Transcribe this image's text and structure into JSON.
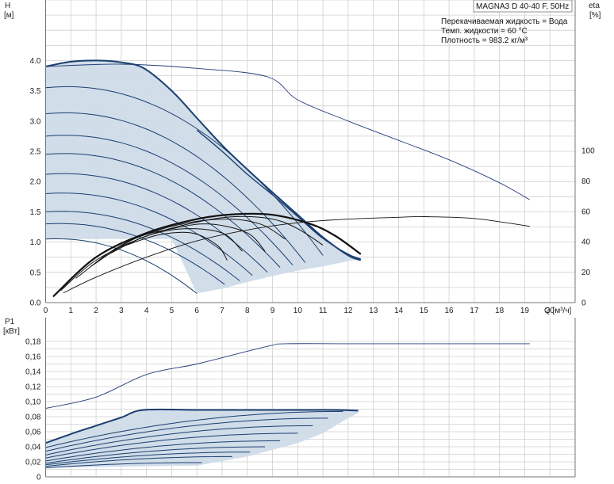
{
  "chart_data": [
    {
      "type": "line",
      "panel": "head",
      "title": "MAGNA3 D 40-40 F, 50Hz",
      "annotations": [
        "Перекачиваемая жидкость = Вода",
        "Темп. жидкости = 60 °C",
        "Плотность = 983.2 кг/м³"
      ],
      "ylabel": "H",
      "yunit": "[м]",
      "y2label": "eta",
      "y2unit": "[%]",
      "xlabel": "Q [м³/ч]",
      "xlim": [
        0,
        21
      ],
      "ylim": [
        0,
        4.0
      ],
      "y2lim": [
        0,
        100
      ],
      "xticks": [
        "0",
        "1",
        "2",
        "3",
        "4",
        "5",
        "6",
        "7",
        "8",
        "9",
        "10",
        "11",
        "12",
        "13",
        "14",
        "15",
        "16",
        "17",
        "18",
        "19",
        "20"
      ],
      "yticks": [
        "0.0",
        "0.5",
        "1.0",
        "1.5",
        "2.0",
        "2.5",
        "3.0",
        "3.5",
        "4.0"
      ],
      "y2ticks": [
        "0",
        "20",
        "40",
        "60",
        "80",
        "100"
      ],
      "grid": true,
      "fill_color": "#cfdbe8",
      "curve_color": "#1a3f70",
      "envelope": [
        [
          0,
          3.9
        ],
        [
          1,
          3.98
        ],
        [
          2,
          4.0
        ],
        [
          3,
          3.97
        ],
        [
          3.9,
          3.87
        ],
        [
          5,
          3.5
        ],
        [
          6,
          3.05
        ],
        [
          7,
          2.6
        ],
        [
          8,
          2.2
        ],
        [
          9,
          1.82
        ],
        [
          10,
          1.45
        ],
        [
          11,
          1.08
        ],
        [
          12,
          0.78
        ],
        [
          12.4,
          0.72
        ],
        [
          11,
          0.6
        ],
        [
          10,
          0.53
        ],
        [
          9,
          0.44
        ],
        [
          8,
          0.34
        ],
        [
          7,
          0.23
        ],
        [
          6,
          0.15
        ],
        [
          5,
          1.05
        ],
        [
          0,
          1.05
        ]
      ],
      "max_curve": [
        [
          0,
          3.9
        ],
        [
          1,
          3.98
        ],
        [
          2,
          4.0
        ],
        [
          3,
          3.97
        ],
        [
          3.9,
          3.87
        ],
        [
          5,
          3.5
        ],
        [
          6,
          3.05
        ],
        [
          7,
          2.6
        ],
        [
          8,
          2.2
        ],
        [
          9,
          1.82
        ],
        [
          10,
          1.45
        ],
        [
          11,
          1.08
        ],
        [
          12,
          0.78
        ],
        [
          12.5,
          0.7
        ]
      ],
      "max_curve_2": [
        [
          6,
          2.85
        ],
        [
          7,
          2.5
        ],
        [
          8,
          2.12
        ],
        [
          9,
          1.78
        ],
        [
          10,
          1.42
        ],
        [
          11,
          1.06
        ],
        [
          12,
          0.8
        ],
        [
          12.5,
          0.72
        ]
      ],
      "speed_curves": [
        {
          "h0": 3.55,
          "qend": 11.0,
          "hend": 0.78
        },
        {
          "h0": 3.12,
          "qend": 10.3,
          "hend": 0.66
        },
        {
          "h0": 2.75,
          "qend": 9.8,
          "hend": 0.62
        },
        {
          "h0": 2.45,
          "qend": 9.3,
          "hend": 0.58
        },
        {
          "h0": 2.12,
          "qend": 8.8,
          "hend": 0.5
        },
        {
          "h0": 1.8,
          "qend": 8.2,
          "hend": 0.45
        },
        {
          "h0": 1.5,
          "qend": 7.7,
          "hend": 0.36
        },
        {
          "h0": 1.3,
          "qend": 7.1,
          "hend": 0.3
        },
        {
          "h0": 1.05,
          "qend": 6.0,
          "hend": 0.15
        }
      ],
      "eta_curve": [
        [
          0,
          3.9
        ],
        [
          3,
          3.94
        ],
        [
          6,
          3.87
        ],
        [
          8.8,
          3.73
        ],
        [
          10,
          3.35
        ],
        [
          12,
          3.0
        ],
        [
          14,
          2.68
        ],
        [
          16,
          2.36
        ],
        [
          18,
          1.98
        ],
        [
          19.2,
          1.7
        ]
      ],
      "eta_low_curve": [
        [
          0.7,
          0.16
        ],
        [
          2,
          0.42
        ],
        [
          4,
          0.75
        ],
        [
          6,
          1.02
        ],
        [
          8,
          1.2
        ],
        [
          10,
          1.32
        ],
        [
          12,
          1.38
        ],
        [
          14,
          1.41
        ],
        [
          15,
          1.42
        ],
        [
          17,
          1.39
        ],
        [
          19.2,
          1.26
        ]
      ],
      "eta_bundle": [
        [
          [
            0.3,
            0.1
          ],
          [
            2,
            0.75
          ],
          [
            4,
            1.15
          ],
          [
            6,
            1.38
          ],
          [
            7.5,
            1.46
          ],
          [
            9,
            1.45
          ],
          [
            10.5,
            1.3
          ],
          [
            11.5,
            1.1
          ],
          [
            12.5,
            0.8
          ]
        ],
        [
          [
            0.6,
            0.2
          ],
          [
            2,
            0.7
          ],
          [
            4,
            1.1
          ],
          [
            6,
            1.33
          ],
          [
            7.5,
            1.42
          ],
          [
            9,
            1.38
          ],
          [
            10,
            1.22
          ],
          [
            11,
            0.95
          ]
        ],
        [
          [
            1.2,
            0.4
          ],
          [
            3,
            0.95
          ],
          [
            5,
            1.26
          ],
          [
            7,
            1.38
          ],
          [
            8.5,
            1.3
          ],
          [
            9.5,
            1.05
          ]
        ],
        [
          [
            1.8,
            0.6
          ],
          [
            3.5,
            1.05
          ],
          [
            5,
            1.22
          ],
          [
            6.5,
            1.3
          ],
          [
            8,
            1.15
          ],
          [
            8.7,
            0.85
          ]
        ],
        [
          [
            2.5,
            0.8
          ],
          [
            4,
            1.1
          ],
          [
            5.5,
            1.22
          ],
          [
            7,
            1.15
          ],
          [
            7.8,
            0.85
          ]
        ],
        [
          [
            3.2,
            0.95
          ],
          [
            4.5,
            1.12
          ],
          [
            5.8,
            1.15
          ],
          [
            6.8,
            0.95
          ],
          [
            7.2,
            0.7
          ]
        ]
      ]
    },
    {
      "type": "line",
      "panel": "power",
      "ylabel": "P1",
      "yunit": "[кВт]",
      "xlim": [
        0,
        21
      ],
      "ylim": [
        0,
        0.18
      ],
      "yticks": [
        "0",
        "0,02",
        "0,04",
        "0,06",
        "0,08",
        "0,10",
        "0,12",
        "0,14",
        "0,16",
        "0,18"
      ],
      "grid": true,
      "max_power": [
        [
          0,
          0.045
        ],
        [
          1,
          0.057
        ],
        [
          2,
          0.068
        ],
        [
          3,
          0.079
        ],
        [
          3.9,
          0.089
        ],
        [
          6,
          0.089
        ],
        [
          8,
          0.089
        ],
        [
          10,
          0.089
        ],
        [
          11.5,
          0.089
        ],
        [
          12.4,
          0.088
        ]
      ],
      "min_power_edge": [
        [
          6,
          0.015
        ],
        [
          8,
          0.027
        ],
        [
          10,
          0.045
        ],
        [
          11,
          0.058
        ],
        [
          12,
          0.078
        ],
        [
          12.4,
          0.085
        ]
      ],
      "p_curve_top": [
        [
          0,
          0.091
        ],
        [
          2,
          0.106
        ],
        [
          4,
          0.136
        ],
        [
          6,
          0.15
        ],
        [
          8,
          0.167
        ],
        [
          9,
          0.175
        ],
        [
          9.5,
          0.177
        ],
        [
          12,
          0.177
        ],
        [
          15,
          0.177
        ],
        [
          19.2,
          0.177
        ]
      ],
      "speed_power_curves": [
        {
          "p0": 0.039,
          "pm": 0.087,
          "qend": 11.8
        },
        {
          "p0": 0.034,
          "pm": 0.078,
          "qend": 11.2
        },
        {
          "p0": 0.029,
          "pm": 0.068,
          "qend": 10.6
        },
        {
          "p0": 0.025,
          "pm": 0.058,
          "qend": 10.0
        },
        {
          "p0": 0.021,
          "pm": 0.048,
          "qend": 9.3
        },
        {
          "p0": 0.018,
          "pm": 0.04,
          "qend": 8.7
        },
        {
          "p0": 0.016,
          "pm": 0.033,
          "qend": 8.1
        },
        {
          "p0": 0.014,
          "pm": 0.027,
          "qend": 7.4
        },
        {
          "p0": 0.012,
          "pm": 0.019,
          "qend": 6.2
        }
      ]
    }
  ]
}
